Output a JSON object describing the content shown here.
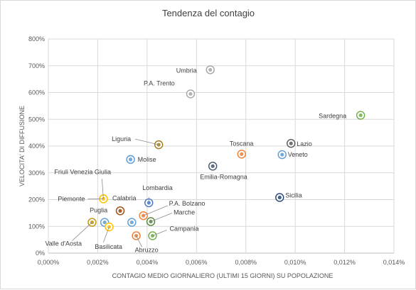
{
  "chart_data": {
    "type": "scatter",
    "title": "Tendenza del contagio",
    "xlabel": "CONTAGIO MEDIO GIORNALIERO (ULTIMI 15 GIORNI) SU POPOLAZIONE",
    "ylabel": "VELOCITA' DI DIFFUSIONE",
    "xlim": [
      0,
      0.014
    ],
    "ylim": [
      0,
      800
    ],
    "x_ticks": [
      "0,000%",
      "0,002%",
      "0,004%",
      "0,006%",
      "0,008%",
      "0,010%",
      "0,012%",
      "0,014%"
    ],
    "y_ticks": [
      "0%",
      "100%",
      "200%",
      "300%",
      "400%",
      "500%",
      "600%",
      "700%",
      "800%"
    ],
    "grid": true,
    "points": [
      {
        "label": "Umbria",
        "x": 0.00656,
        "y": 685,
        "color": "#a5a5a5"
      },
      {
        "label": "P.A. Trento",
        "x": 0.00576,
        "y": 595,
        "color": "#a5a5a5"
      },
      {
        "label": "Sardegna",
        "x": 0.01265,
        "y": 515,
        "color": "#70ad47"
      },
      {
        "label": "Lazio",
        "x": 0.00983,
        "y": 410,
        "color": "#595959"
      },
      {
        "label": "Veneto",
        "x": 0.00947,
        "y": 368,
        "color": "#5b9bd5"
      },
      {
        "label": "Toscana",
        "x": 0.00783,
        "y": 370,
        "color": "#ed7d31"
      },
      {
        "label": "Liguria",
        "x": 0.00447,
        "y": 405,
        "color": "#9e7a1a"
      },
      {
        "label": "Molise",
        "x": 0.00333,
        "y": 350,
        "color": "#5b9bd5"
      },
      {
        "label": "Emilia-Romagna",
        "x": 0.00666,
        "y": 325,
        "color": "#44546a"
      },
      {
        "label": "Sicilia",
        "x": 0.00937,
        "y": 208,
        "color": "#264478"
      },
      {
        "label": "Friuli Venezia Giulia",
        "x": 0.00223,
        "y": 203,
        "color": "#ffc000"
      },
      {
        "label": "Piemonte",
        "x": 0.00223,
        "y": 203,
        "color": "#ffc000"
      },
      {
        "label": "Calabria",
        "x": 0.00291,
        "y": 158,
        "color": "#9e480e"
      },
      {
        "label": "Lombardia",
        "x": 0.00407,
        "y": 188,
        "color": "#4472c4"
      },
      {
        "label": "P.A. Bolzano",
        "x": 0.00385,
        "y": 140,
        "color": "#ed7d31"
      },
      {
        "label": "Puglia",
        "x": 0.00228,
        "y": 115,
        "color": "#5b9bd5"
      },
      {
        "label": "Valle d'Aosta",
        "x": 0.00177,
        "y": 115,
        "color": "#bf9000"
      },
      {
        "label": "Basilicata",
        "x": 0.00246,
        "y": 98,
        "color": "#ffc000"
      },
      {
        "label": "Marche",
        "x": 0.00415,
        "y": 118,
        "color": "#548235"
      },
      {
        "label": "Abruzzo",
        "x": 0.00356,
        "y": 65,
        "color": "#ed7d31"
      },
      {
        "label": "Campania",
        "x": 0.00422,
        "y": 65,
        "color": "#70ad47"
      },
      {
        "label": "(unlabeled)",
        "x": 0.00338,
        "y": 115,
        "color": "#5b9bd5"
      }
    ]
  }
}
